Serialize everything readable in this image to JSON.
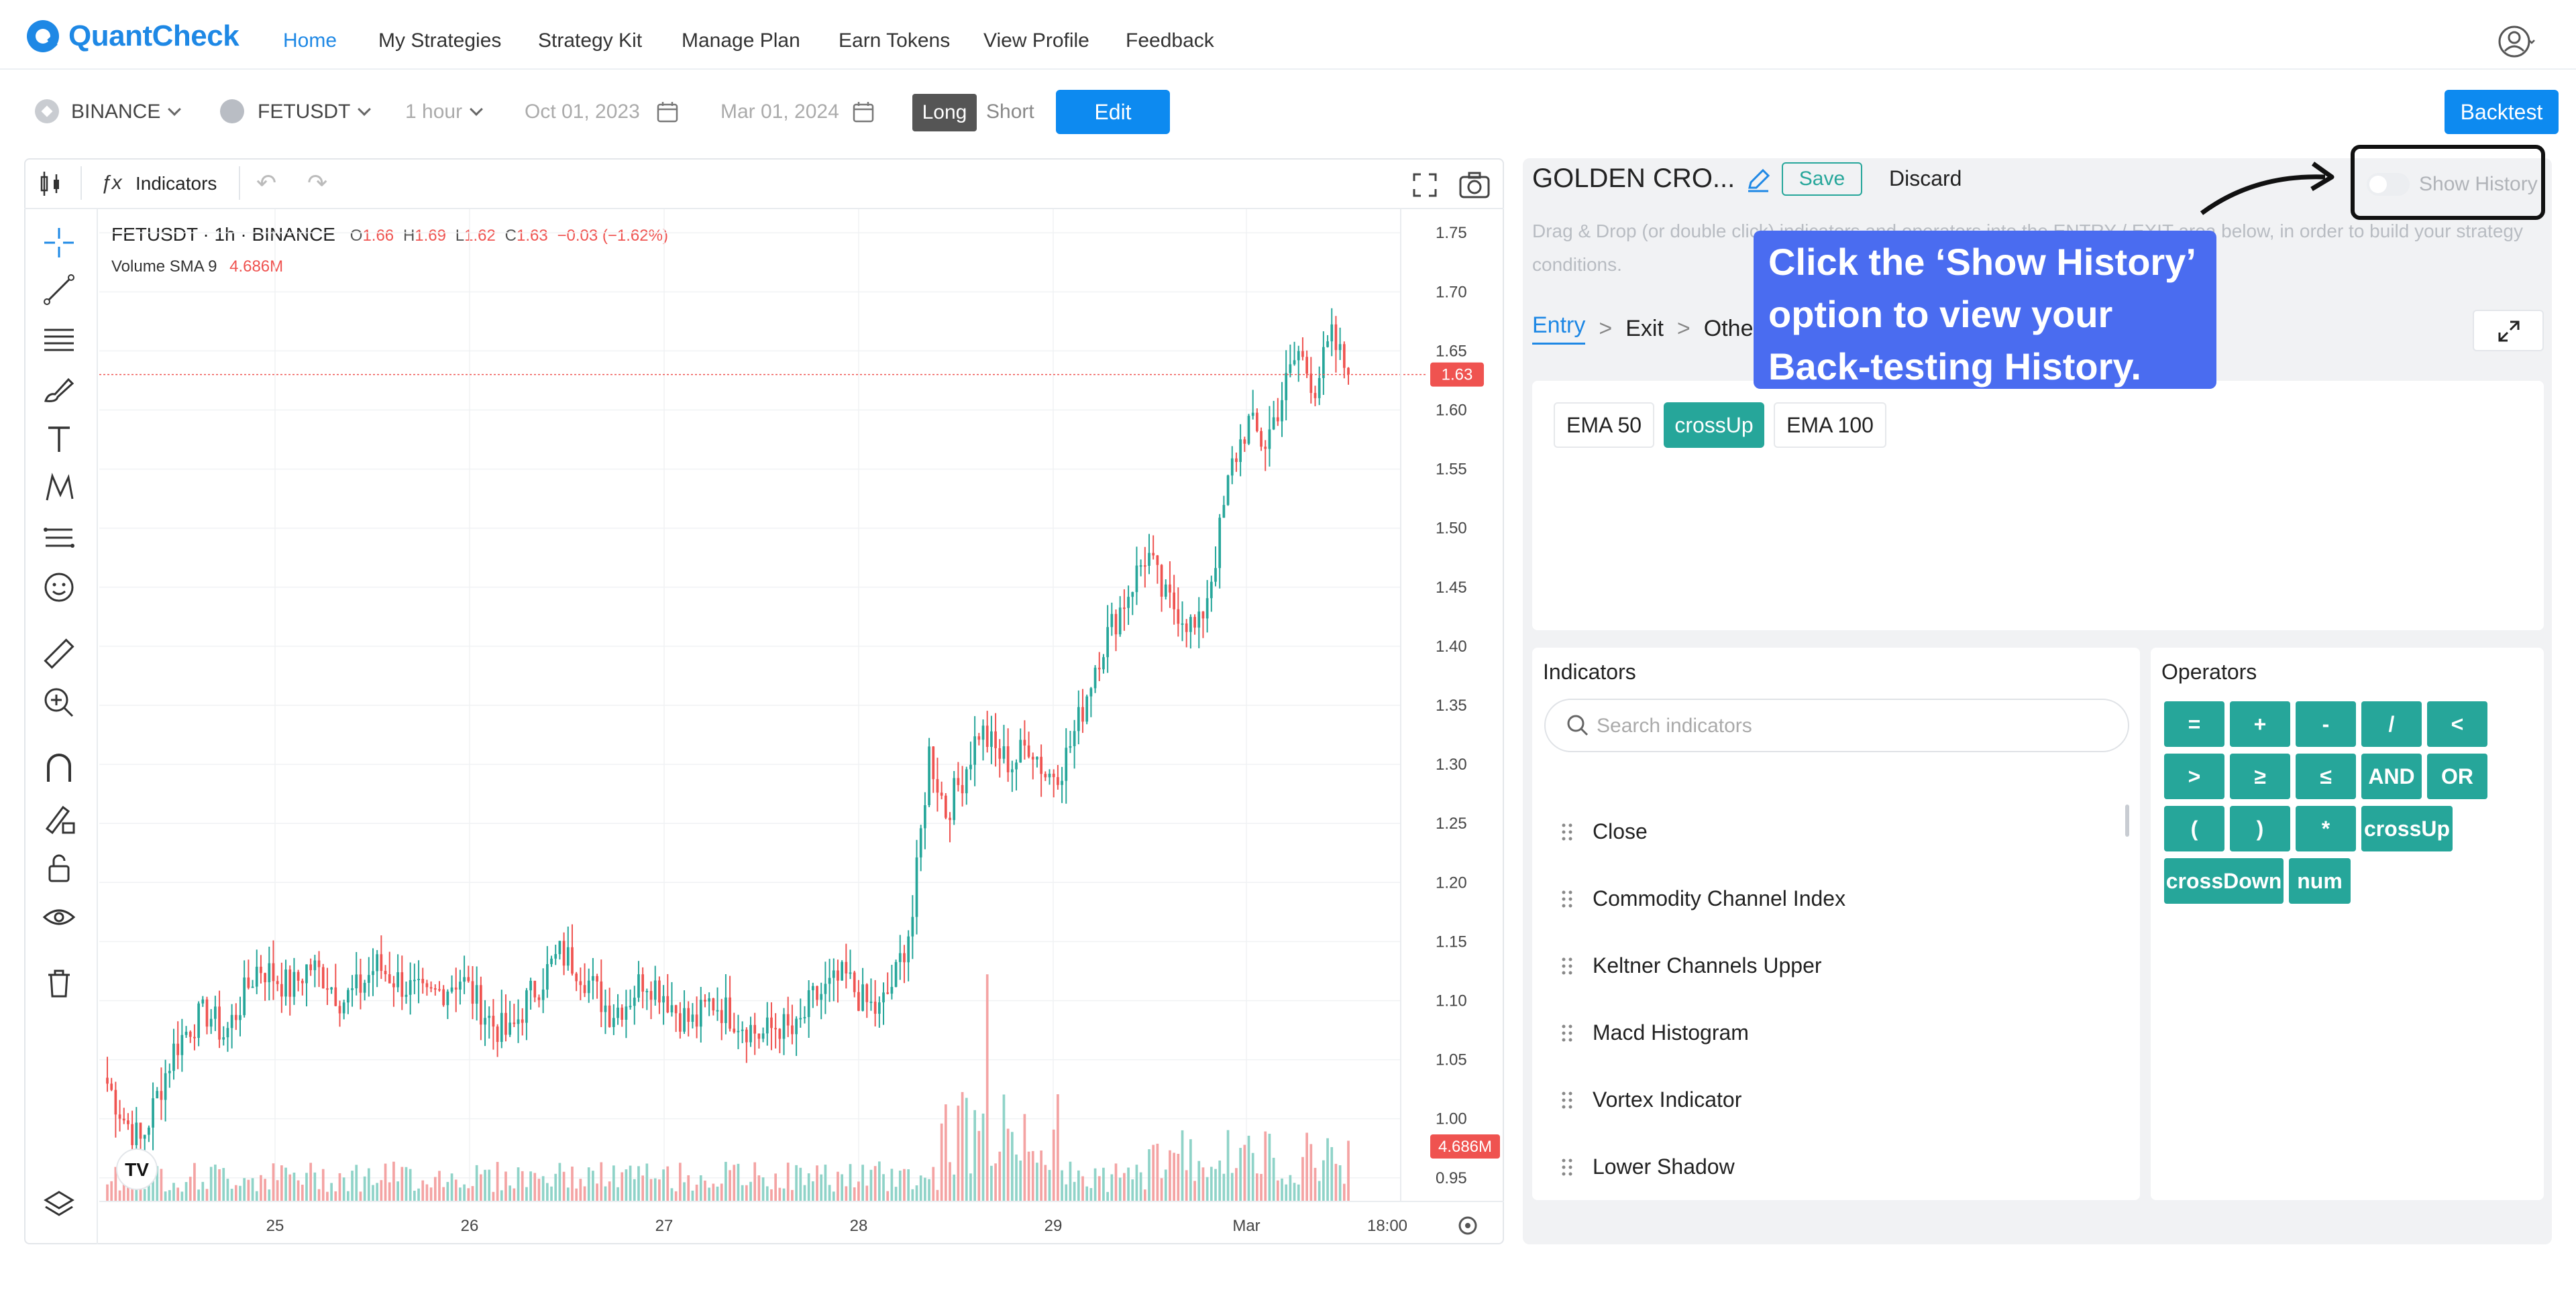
{
  "app": {
    "name": "QuantCheck",
    "brand_color": "#1e88e5"
  },
  "nav": {
    "links": [
      "Home",
      "My Strategies",
      "Strategy Kit",
      "Manage Plan",
      "Earn Tokens",
      "View Profile",
      "Feedback"
    ],
    "active": "Home"
  },
  "toolbar": {
    "exchange": "BINANCE",
    "symbol": "FETUSDT",
    "interval": "1 hour",
    "start_date": "Oct 01, 2023",
    "end_date": "Mar 01, 2024",
    "long_label": "Long",
    "short_label": "Short",
    "edit_label": "Edit",
    "backtest_label": "Backtest"
  },
  "chart": {
    "indicators_label": "Indicators",
    "legend_symbol": "FETUSDT · 1h · BINANCE",
    "legend_o_key": "O",
    "legend_o": "1.66",
    "legend_h_key": "H",
    "legend_h": "1.69",
    "legend_l_key": "L",
    "legend_l": "1.62",
    "legend_c_key": "C",
    "legend_c": "1.63",
    "legend_change": "−0.03 (−1.62%)",
    "volume_label": "Volume SMA 9",
    "volume_value": "4.686M",
    "last_price_tag": "1.63",
    "volume_tag": "4.686M",
    "tv_logo": "TV",
    "price_ticks": [
      "1.75",
      "1.70",
      "1.65",
      "1.60",
      "1.55",
      "1.50",
      "1.45",
      "1.40",
      "1.35",
      "1.30",
      "1.25",
      "1.20",
      "1.15",
      "1.10",
      "1.05",
      "1.00",
      "0.95"
    ],
    "time_ticks": [
      "25",
      "26",
      "27",
      "28",
      "29",
      "Mar",
      "18:00"
    ],
    "colors": {
      "up": "#26a69a",
      "down": "#ef5350",
      "up_volume": "#8fd3c8",
      "down_volume": "#f4a3a3"
    }
  },
  "chart_data": {
    "type": "candlestick",
    "symbol": "FETUSDT",
    "interval": "1h",
    "y_range": [
      0.93,
      1.77
    ],
    "x_ticks": [
      "25",
      "26",
      "27",
      "28",
      "29",
      "Mar",
      "18:00"
    ],
    "close_path": [
      1.03,
      1.0,
      0.98,
      1.02,
      1.06,
      1.08,
      1.09,
      1.07,
      1.1,
      1.13,
      1.12,
      1.11,
      1.13,
      1.12,
      1.1,
      1.11,
      1.13,
      1.12,
      1.11,
      1.1,
      1.11,
      1.12,
      1.1,
      1.08,
      1.07,
      1.1,
      1.12,
      1.14,
      1.13,
      1.11,
      1.09,
      1.1,
      1.12,
      1.11,
      1.09,
      1.08,
      1.1,
      1.09,
      1.08,
      1.07,
      1.08,
      1.07,
      1.1,
      1.11,
      1.12,
      1.1,
      1.09,
      1.12,
      1.17,
      1.31,
      1.26,
      1.29,
      1.33,
      1.31,
      1.3,
      1.32,
      1.29,
      1.3,
      1.34,
      1.39,
      1.42,
      1.45,
      1.48,
      1.44,
      1.43,
      1.41,
      1.47,
      1.55,
      1.59,
      1.57,
      1.61,
      1.65,
      1.62,
      1.66,
      1.63
    ],
    "last_close": 1.63,
    "ohlc_last": {
      "open": 1.66,
      "high": 1.69,
      "low": 1.62,
      "close": 1.63
    },
    "volume_sma9": "4.686M"
  },
  "strategy": {
    "name": "GOLDEN CRO...",
    "save_label": "Save",
    "discard_label": "Discard",
    "hint": "Drag & Drop (or double click) indicators and operators into the ENTRY / EXIT area below, in order to build your strategy conditions.",
    "tabs": [
      "Entry",
      "Exit",
      "Other"
    ],
    "active_tab": "Entry",
    "entry_tokens": [
      "EMA 50",
      "crossUp",
      "EMA 100"
    ],
    "show_history_label": "Show History"
  },
  "indicators": {
    "title": "Indicators",
    "search_placeholder": "Search indicators",
    "items": [
      "Close",
      "Commodity Channel Index",
      "Keltner Channels Upper",
      "Macd Histogram",
      "Vortex Indicator",
      "Lower Shadow"
    ]
  },
  "operators": {
    "title": "Operators",
    "rows": [
      [
        "=",
        "+",
        "-",
        "/",
        "<"
      ],
      [
        ">",
        "≥",
        "≤",
        "AND",
        "OR"
      ],
      [
        "(",
        ")",
        "*",
        "crossUp"
      ],
      [
        "crossDown",
        "num"
      ]
    ],
    "color": "#26a69a"
  },
  "annotation": {
    "callout_line1": "Click the ‘Show History’",
    "callout_line2": "option to view your",
    "callout_line3": "Back-testing History.",
    "callout_color": "#4a6cf0"
  }
}
